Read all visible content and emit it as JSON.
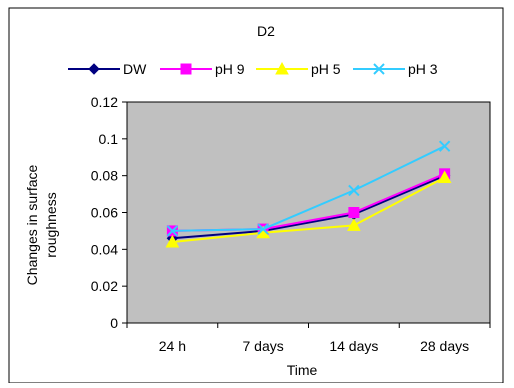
{
  "chart_data": {
    "type": "line",
    "title": "D2",
    "xlabel": "Time",
    "ylabel_lines": [
      "Changes in surface",
      "roughness"
    ],
    "categories": [
      "24 h",
      "7 days",
      "14 days",
      "28 days"
    ],
    "y_ticks": [
      "0",
      "0.02",
      "0.04",
      "0.06",
      "0.08",
      "0.1",
      "0.12"
    ],
    "ylim": [
      0,
      0.12
    ],
    "grid": false,
    "legend_position": "top",
    "plot_background": "#c0c0c0",
    "series": [
      {
        "name": "DW",
        "values": [
          0.046,
          0.05,
          0.059,
          0.08
        ],
        "color": "#000080",
        "marker": "diamond"
      },
      {
        "name": "pH 9",
        "values": [
          0.05,
          0.051,
          0.06,
          0.081
        ],
        "color": "#ff00ff",
        "marker": "square"
      },
      {
        "name": "pH 5",
        "values": [
          0.044,
          0.049,
          0.053,
          0.079
        ],
        "color": "#ffff00",
        "marker": "triangle"
      },
      {
        "name": "pH 3",
        "values": [
          0.05,
          0.051,
          0.072,
          0.096
        ],
        "color": "#33ccff",
        "marker": "x"
      }
    ]
  }
}
